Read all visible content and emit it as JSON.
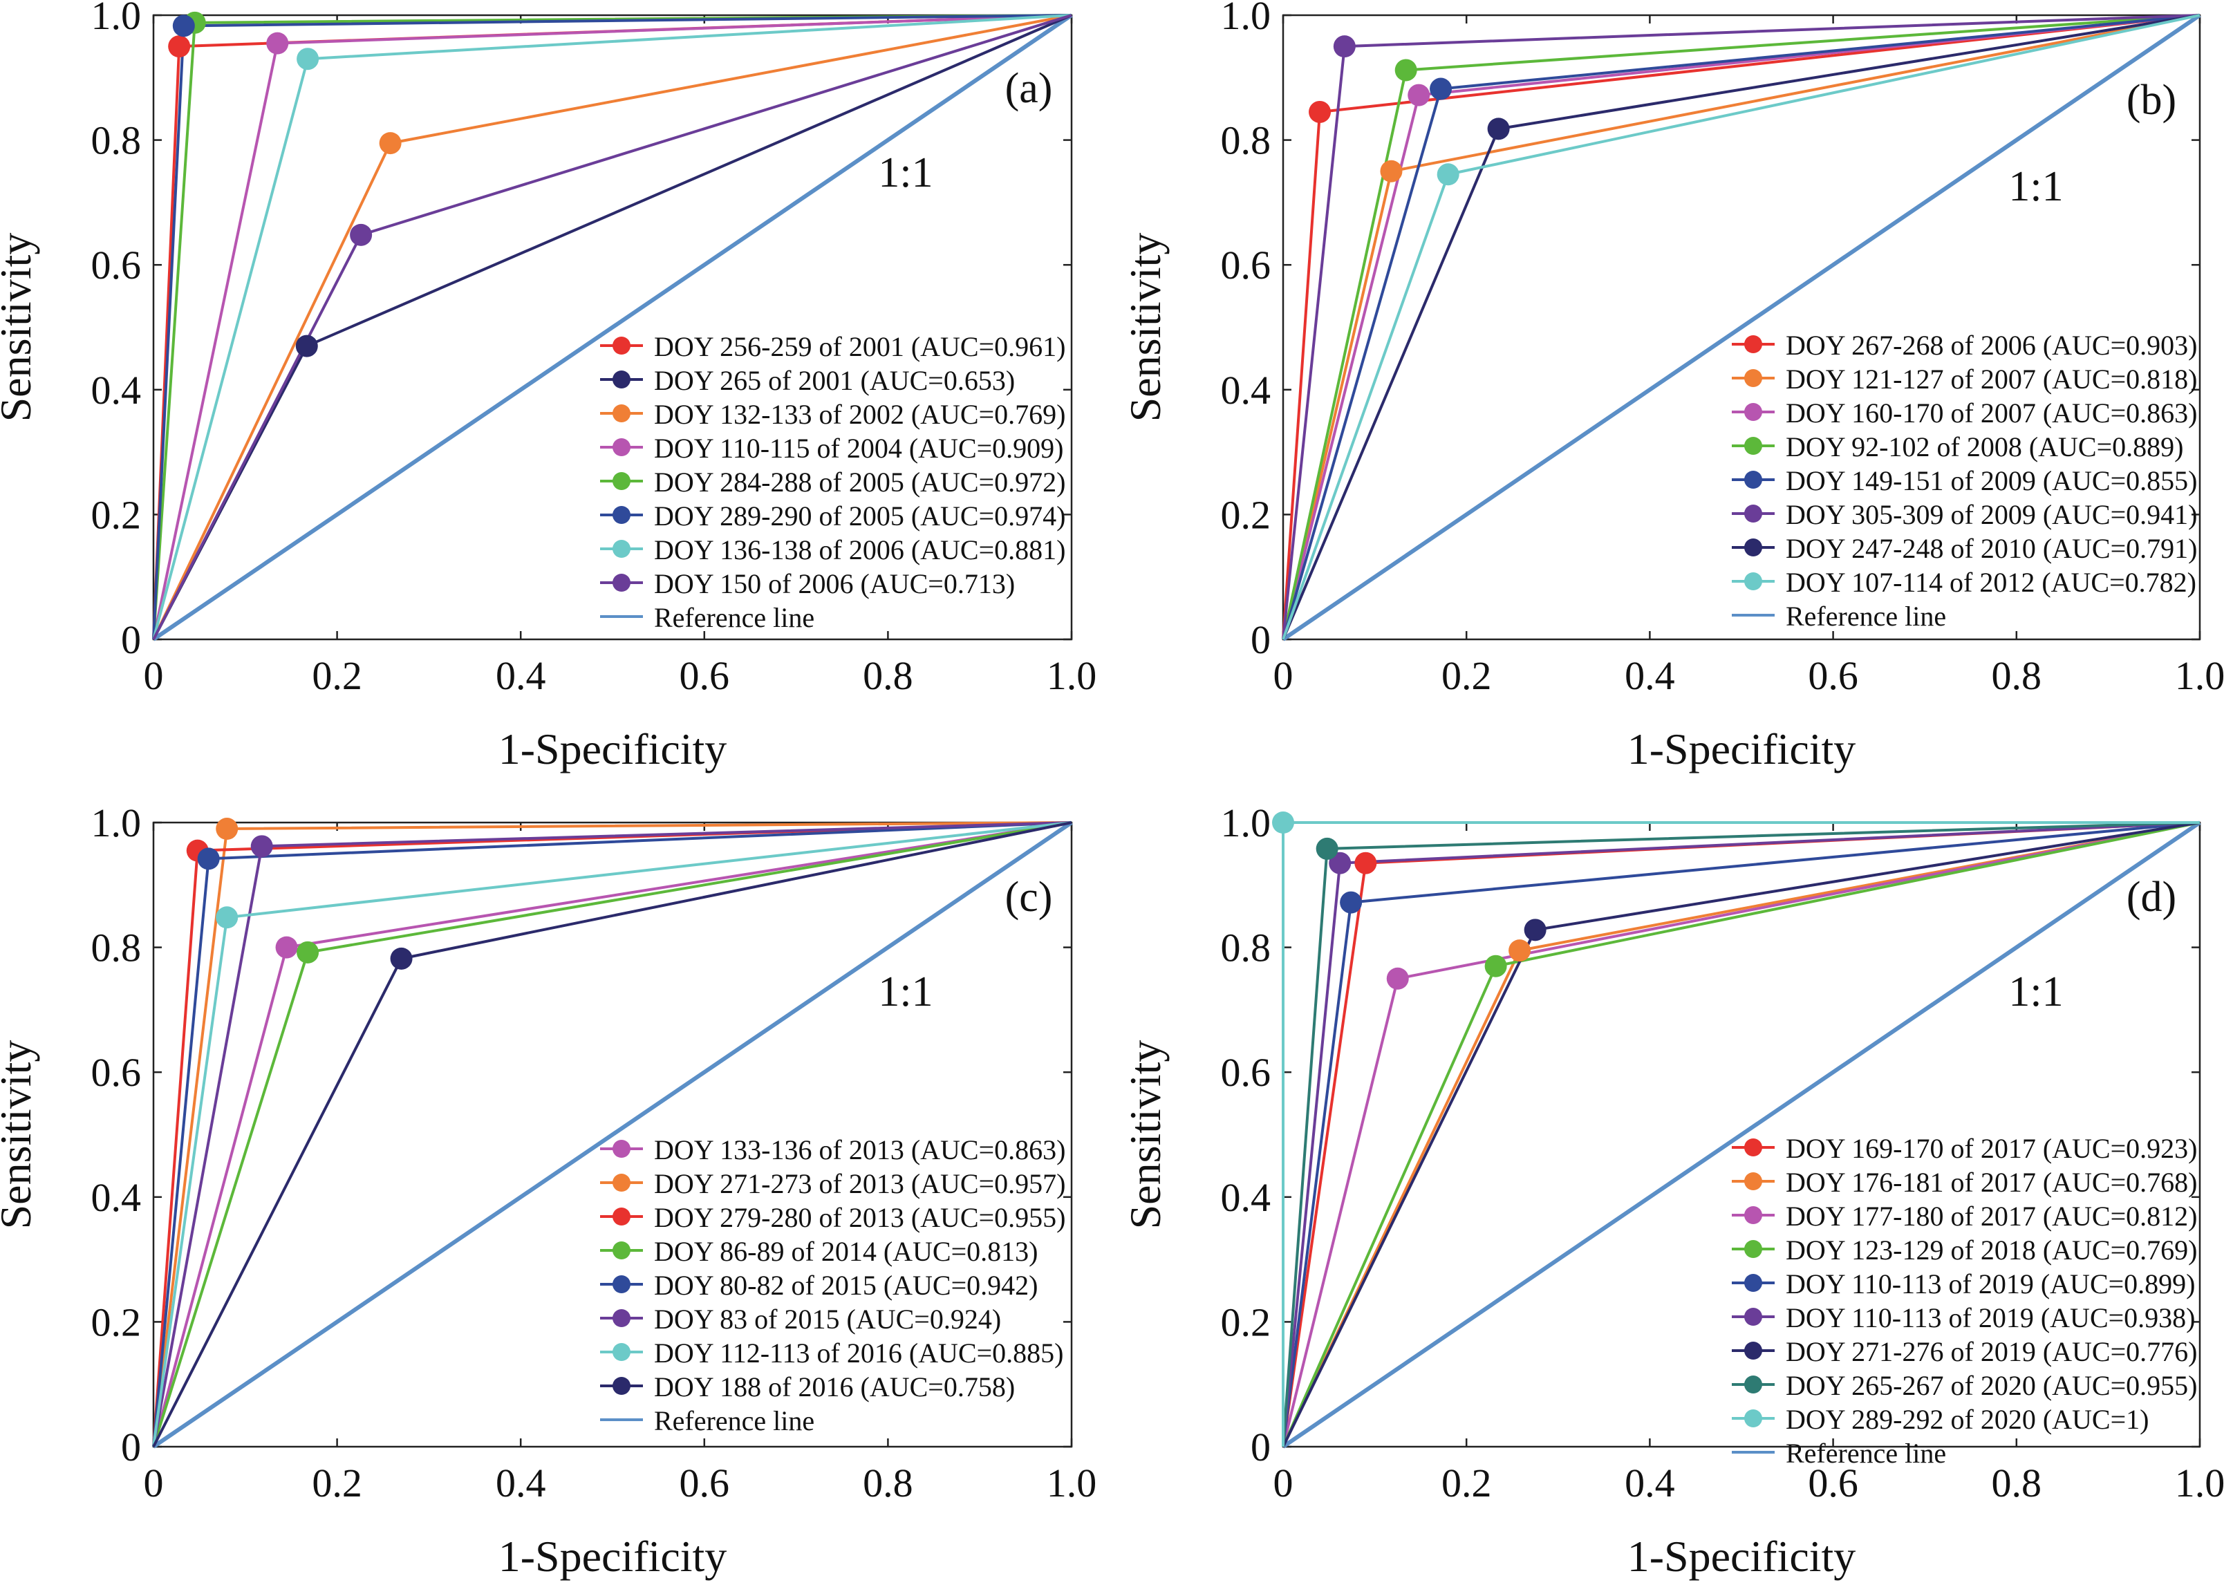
{
  "chart_data": [
    {
      "type": "line",
      "panel_label": "(a)",
      "xlabel": "1-Specificity",
      "ylabel": "Sensitivity",
      "xlim": [
        0,
        1
      ],
      "ylim": [
        0,
        1
      ],
      "x_ticks": [
        "0",
        "0.2",
        "0.4",
        "0.6",
        "0.8",
        "1.0"
      ],
      "y_ticks": [
        "0",
        "0.2",
        "0.4",
        "0.6",
        "0.8",
        "1.0"
      ],
      "grid": false,
      "legend_position": "bottom-right",
      "reference_label": "1:1",
      "reference_series": {
        "name": "Reference line",
        "color": "#5b8fc7"
      },
      "series": [
        {
          "name": "DOY 256-259 of 2001 (AUC=0.961)",
          "color": "#e8322e",
          "point": [
            0.028,
            0.95
          ]
        },
        {
          "name": "DOY 265 of 2001 (AUC=0.653)",
          "color": "#2b2a6b",
          "point": [
            0.167,
            0.47
          ]
        },
        {
          "name": "DOY 132-133 of 2002 (AUC=0.769)",
          "color": "#f07f35",
          "point": [
            0.258,
            0.795
          ]
        },
        {
          "name": "DOY 110-115 of 2004 (AUC=0.909)",
          "color": "#b755b0",
          "point": [
            0.135,
            0.955
          ]
        },
        {
          "name": "DOY 284-288 of 2005 (AUC=0.972)",
          "color": "#5cb83a",
          "point": [
            0.045,
            0.988
          ]
        },
        {
          "name": "DOY 289-290 of 2005 (AUC=0.974)",
          "color": "#2f4a9a",
          "point": [
            0.033,
            0.983
          ]
        },
        {
          "name": "DOY 136-138 of 2006 (AUC=0.881)",
          "color": "#6ccac8",
          "point": [
            0.168,
            0.93
          ]
        },
        {
          "name": "DOY 150 of 2006 (AUC=0.713)",
          "color": "#6a3d98",
          "point": [
            0.226,
            0.648
          ]
        }
      ]
    },
    {
      "type": "line",
      "panel_label": "(b)",
      "xlabel": "1-Specificity",
      "ylabel": "Sensitivity",
      "xlim": [
        0,
        1
      ],
      "ylim": [
        0,
        1
      ],
      "x_ticks": [
        "0",
        "0.2",
        "0.4",
        "0.6",
        "0.8",
        "1.0"
      ],
      "y_ticks": [
        "0",
        "0.2",
        "0.4",
        "0.6",
        "0.8",
        "1.0"
      ],
      "grid": false,
      "legend_position": "bottom-right",
      "reference_label": "1:1",
      "reference_series": {
        "name": "Reference line",
        "color": "#5b8fc7"
      },
      "series": [
        {
          "name": "DOY 267-268 of 2006 (AUC=0.903)",
          "color": "#e8322e",
          "point": [
            0.04,
            0.845
          ]
        },
        {
          "name": "DOY 121-127 of 2007 (AUC=0.818)",
          "color": "#f07f35",
          "point": [
            0.118,
            0.75
          ]
        },
        {
          "name": "DOY 160-170 of 2007 (AUC=0.863)",
          "color": "#b755b0",
          "point": [
            0.148,
            0.872
          ]
        },
        {
          "name": "DOY 92-102 of 2008 (AUC=0.889)",
          "color": "#5cb83a",
          "point": [
            0.134,
            0.912
          ]
        },
        {
          "name": "DOY 149-151 of 2009 (AUC=0.855)",
          "color": "#2f4a9a",
          "point": [
            0.172,
            0.882
          ]
        },
        {
          "name": "DOY 305-309 of 2009 (AUC=0.941)",
          "color": "#6a3d98",
          "point": [
            0.067,
            0.95
          ]
        },
        {
          "name": "DOY 247-248 of 2010 (AUC=0.791)",
          "color": "#2b2a6b",
          "point": [
            0.235,
            0.818
          ]
        },
        {
          "name": "DOY 107-114 of 2012 (AUC=0.782)",
          "color": "#6ccac8",
          "point": [
            0.18,
            0.745
          ]
        }
      ]
    },
    {
      "type": "line",
      "panel_label": "(c)",
      "xlabel": "1-Specificity",
      "ylabel": "Sensitivity",
      "xlim": [
        0,
        1
      ],
      "ylim": [
        0,
        1
      ],
      "x_ticks": [
        "0",
        "0.2",
        "0.4",
        "0.6",
        "0.8",
        "1.0"
      ],
      "y_ticks": [
        "0",
        "0.2",
        "0.4",
        "0.6",
        "0.8",
        "1.0"
      ],
      "grid": false,
      "legend_position": "bottom-right",
      "reference_label": "1:1",
      "reference_series": {
        "name": "Reference line",
        "color": "#5b8fc7"
      },
      "series": [
        {
          "name": "DOY 133-136 of 2013 (AUC=0.863)",
          "color": "#b755b0",
          "point": [
            0.145,
            0.8
          ]
        },
        {
          "name": "DOY 271-273 of 2013 (AUC=0.957)",
          "color": "#f07f35",
          "point": [
            0.08,
            0.99
          ]
        },
        {
          "name": "DOY 279-280 of 2013 (AUC=0.955)",
          "color": "#e8322e",
          "point": [
            0.048,
            0.955
          ]
        },
        {
          "name": "DOY 86-89 of 2014 (AUC=0.813)",
          "color": "#5cb83a",
          "point": [
            0.168,
            0.792
          ]
        },
        {
          "name": "DOY 80-82 of 2015 (AUC=0.942)",
          "color": "#2f4a9a",
          "point": [
            0.06,
            0.942
          ]
        },
        {
          "name": "DOY 83 of 2015 (AUC=0.924)",
          "color": "#6a3d98",
          "point": [
            0.118,
            0.962
          ]
        },
        {
          "name": "DOY 112-113 of 2016 (AUC=0.885)",
          "color": "#6ccac8",
          "point": [
            0.08,
            0.848
          ]
        },
        {
          "name": "DOY 188 of 2016 (AUC=0.758)",
          "color": "#2b2a6b",
          "point": [
            0.27,
            0.782
          ]
        }
      ]
    },
    {
      "type": "line",
      "panel_label": "(d)",
      "xlabel": "1-Specificity",
      "ylabel": "Sensitivity",
      "xlim": [
        0,
        1
      ],
      "ylim": [
        0,
        1
      ],
      "x_ticks": [
        "0",
        "0.2",
        "0.4",
        "0.6",
        "0.8",
        "1.0"
      ],
      "y_ticks": [
        "0",
        "0.2",
        "0.4",
        "0.6",
        "0.8",
        "1.0"
      ],
      "grid": false,
      "legend_position": "bottom-right",
      "reference_label": "1:1",
      "reference_series": {
        "name": "Reference line",
        "color": "#5b8fc7"
      },
      "series": [
        {
          "name": "DOY 169-170 of 2017 (AUC=0.923)",
          "color": "#e8322e",
          "point": [
            0.09,
            0.935
          ]
        },
        {
          "name": "DOY 176-181 of 2017 (AUC=0.768)",
          "color": "#f07f35",
          "point": [
            0.258,
            0.795
          ]
        },
        {
          "name": "DOY 177-180 of 2017 (AUC=0.812)",
          "color": "#b755b0",
          "point": [
            0.125,
            0.75
          ]
        },
        {
          "name": "DOY 123-129 of 2018 (AUC=0.769)",
          "color": "#5cb83a",
          "point": [
            0.232,
            0.77
          ]
        },
        {
          "name": "DOY 110-113 of 2019 (AUC=0.899)",
          "color": "#2f4a9a",
          "point": [
            0.074,
            0.872
          ]
        },
        {
          "name": "DOY 110-113 of 2019 (AUC=0.938)",
          "color": "#6a3d98",
          "point": [
            0.062,
            0.935
          ]
        },
        {
          "name": "DOY 271-276 of 2019 (AUC=0.776)",
          "color": "#2b2a6b",
          "point": [
            0.275,
            0.828
          ]
        },
        {
          "name": "DOY 265-267 of 2020 (AUC=0.955)",
          "color": "#2e7b73",
          "point": [
            0.048,
            0.958
          ]
        },
        {
          "name": "DOY 289-292 of 2020 (AUC=1)",
          "color": "#6ccac8",
          "point": [
            0.0,
            1.0
          ]
        }
      ]
    }
  ]
}
